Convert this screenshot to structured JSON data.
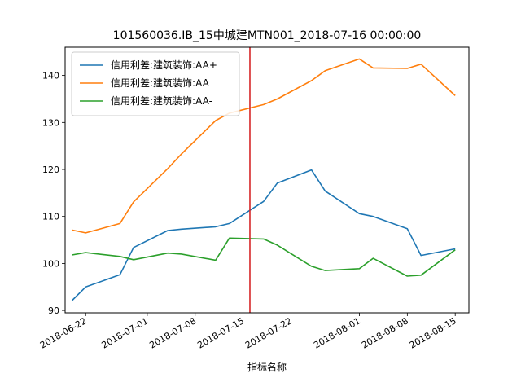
{
  "chart_data": {
    "type": "line",
    "title": "101560036.IB_15中城建MTN001_2018-07-16 00:00:00",
    "xlabel": "指标名称",
    "ylabel": "",
    "x_type": "date",
    "xlim": [
      "2018-06-19",
      "2018-08-17"
    ],
    "ylim": [
      89.5,
      146
    ],
    "x_ticks": [
      "2018-06-22",
      "2018-07-01",
      "2018-07-08",
      "2018-07-15",
      "2018-07-22",
      "2018-08-01",
      "2018-08-08",
      "2018-08-15"
    ],
    "y_ticks": [
      90,
      100,
      110,
      120,
      130,
      140
    ],
    "grid": false,
    "legend_position": "top-left",
    "vline": {
      "x": "2018-07-16",
      "color": "#d62728"
    },
    "series": [
      {
        "name": "信用利差:建筑装饰:AA+",
        "color": "#1f77b4",
        "points": [
          [
            "2018-06-20",
            92.1
          ],
          [
            "2018-06-22",
            95.0
          ],
          [
            "2018-06-27",
            97.6
          ],
          [
            "2018-06-29",
            103.4
          ],
          [
            "2018-07-04",
            107.0
          ],
          [
            "2018-07-06",
            107.3
          ],
          [
            "2018-07-11",
            107.8
          ],
          [
            "2018-07-13",
            108.5
          ],
          [
            "2018-07-18",
            113.2
          ],
          [
            "2018-07-20",
            117.1
          ],
          [
            "2018-07-25",
            119.9
          ],
          [
            "2018-07-27",
            115.4
          ],
          [
            "2018-08-01",
            110.6
          ],
          [
            "2018-08-03",
            110.0
          ],
          [
            "2018-08-08",
            107.4
          ],
          [
            "2018-08-10",
            101.7
          ],
          [
            "2018-08-15",
            103.1
          ]
        ]
      },
      {
        "name": "信用利差:建筑装饰:AA",
        "color": "#ff7f0e",
        "points": [
          [
            "2018-06-20",
            107.1
          ],
          [
            "2018-06-22",
            106.5
          ],
          [
            "2018-06-27",
            108.5
          ],
          [
            "2018-06-29",
            113.1
          ],
          [
            "2018-07-04",
            120.2
          ],
          [
            "2018-07-06",
            123.3
          ],
          [
            "2018-07-11",
            130.4
          ],
          [
            "2018-07-13",
            132.0
          ],
          [
            "2018-07-18",
            133.8
          ],
          [
            "2018-07-20",
            135.0
          ],
          [
            "2018-07-25",
            138.9
          ],
          [
            "2018-07-27",
            141.0
          ],
          [
            "2018-08-01",
            143.5
          ],
          [
            "2018-08-03",
            141.6
          ],
          [
            "2018-08-08",
            141.5
          ],
          [
            "2018-08-10",
            142.4
          ],
          [
            "2018-08-15",
            135.7
          ]
        ]
      },
      {
        "name": "信用利差:建筑装饰:AA-",
        "color": "#2ca02c",
        "points": [
          [
            "2018-06-20",
            101.8
          ],
          [
            "2018-06-22",
            102.3
          ],
          [
            "2018-06-27",
            101.5
          ],
          [
            "2018-06-29",
            100.8
          ],
          [
            "2018-07-04",
            102.2
          ],
          [
            "2018-07-06",
            102.0
          ],
          [
            "2018-07-11",
            100.7
          ],
          [
            "2018-07-13",
            105.4
          ],
          [
            "2018-07-18",
            105.2
          ],
          [
            "2018-07-20",
            103.9
          ],
          [
            "2018-07-25",
            99.4
          ],
          [
            "2018-07-27",
            98.5
          ],
          [
            "2018-08-01",
            98.9
          ],
          [
            "2018-08-03",
            101.1
          ],
          [
            "2018-08-08",
            97.3
          ],
          [
            "2018-08-10",
            97.5
          ],
          [
            "2018-08-15",
            102.9
          ]
        ]
      }
    ]
  }
}
